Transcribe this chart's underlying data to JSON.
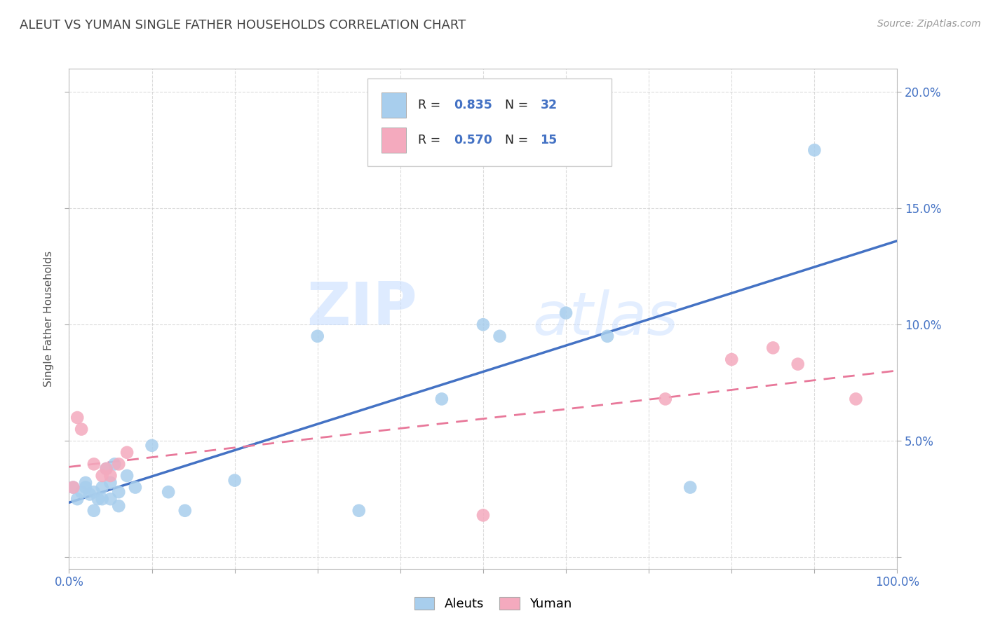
{
  "title": "ALEUT VS YUMAN SINGLE FATHER HOUSEHOLDS CORRELATION CHART",
  "source": "Source: ZipAtlas.com",
  "ylabel": "Single Father Households",
  "xlim": [
    0,
    1.0
  ],
  "ylim": [
    -0.005,
    0.21
  ],
  "xticks": [
    0.0,
    0.1,
    0.2,
    0.3,
    0.4,
    0.5,
    0.6,
    0.7,
    0.8,
    0.9,
    1.0
  ],
  "yticks": [
    0.0,
    0.05,
    0.1,
    0.15,
    0.2
  ],
  "ytick_labels_left": [
    "",
    "",
    "",
    "",
    ""
  ],
  "ytick_labels_right": [
    "",
    "5.0%",
    "10.0%",
    "15.0%",
    "20.0%"
  ],
  "xtick_labels": [
    "0.0%",
    "",
    "",
    "",
    "",
    "",
    "",
    "",
    "",
    "",
    "100.0%"
  ],
  "aleuts_R": 0.835,
  "aleuts_N": 32,
  "yuman_R": 0.57,
  "yuman_N": 15,
  "aleuts_color": "#A8CEED",
  "yuman_color": "#F4AABE",
  "aleuts_line_color": "#4472C4",
  "yuman_line_color": "#E8789A",
  "background_color": "#FFFFFF",
  "grid_color": "#CCCCCC",
  "watermark_zip": "ZIP",
  "watermark_atlas": "atlas",
  "title_color": "#444444",
  "tick_color": "#4472C4",
  "aleuts_x": [
    0.005,
    0.01,
    0.015,
    0.02,
    0.02,
    0.025,
    0.03,
    0.03,
    0.035,
    0.04,
    0.04,
    0.045,
    0.05,
    0.05,
    0.055,
    0.06,
    0.06,
    0.07,
    0.08,
    0.1,
    0.12,
    0.14,
    0.2,
    0.3,
    0.35,
    0.45,
    0.5,
    0.52,
    0.6,
    0.65,
    0.75,
    0.9
  ],
  "aleuts_y": [
    0.03,
    0.025,
    0.028,
    0.032,
    0.03,
    0.027,
    0.028,
    0.02,
    0.025,
    0.03,
    0.025,
    0.038,
    0.032,
    0.025,
    0.04,
    0.028,
    0.022,
    0.035,
    0.03,
    0.048,
    0.028,
    0.02,
    0.033,
    0.095,
    0.02,
    0.068,
    0.1,
    0.095,
    0.105,
    0.095,
    0.03,
    0.175
  ],
  "yuman_x": [
    0.005,
    0.01,
    0.015,
    0.03,
    0.04,
    0.045,
    0.05,
    0.06,
    0.07,
    0.5,
    0.72,
    0.8,
    0.85,
    0.88,
    0.95
  ],
  "yuman_y": [
    0.03,
    0.06,
    0.055,
    0.04,
    0.035,
    0.038,
    0.035,
    0.04,
    0.045,
    0.018,
    0.068,
    0.085,
    0.09,
    0.083,
    0.068
  ]
}
